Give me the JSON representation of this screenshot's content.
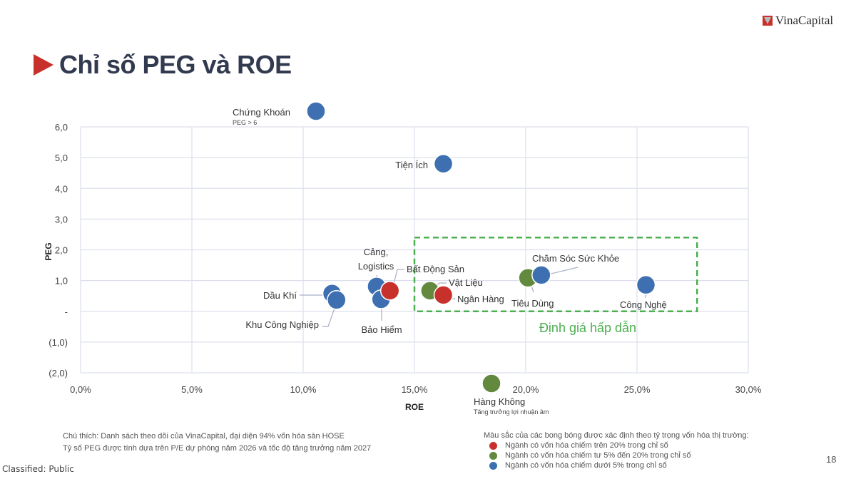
{
  "header": {
    "brand": "VinaCapital",
    "title": "Chỉ số PEG và ROE"
  },
  "colors": {
    "red": "#c8312b",
    "green": "#63893f",
    "blue": "#3e70b1",
    "zone": "#4caf50",
    "grid": "#dde0ec"
  },
  "chart_data": {
    "type": "scatter",
    "xlabel": "ROE",
    "ylabel": "PEG",
    "xlim": [
      0,
      30
    ],
    "ylim": [
      -2,
      6
    ],
    "x_ticks": [
      0,
      5,
      10,
      15,
      20,
      25,
      30
    ],
    "x_tick_labels": [
      "0,0%",
      "5,0%",
      "10,0%",
      "15,0%",
      "20,0%",
      "25,0%",
      "30,0%"
    ],
    "y_ticks": [
      6,
      5,
      4,
      3,
      2,
      1,
      0,
      -1,
      -2
    ],
    "y_tick_labels": [
      "6,0",
      "5,0",
      "4,0",
      "3,0",
      "2,0",
      "1,0",
      "-",
      "(1,0)",
      "(2,0)"
    ],
    "grid": true,
    "highlight_zone": {
      "label": "Định giá hấp dẫn",
      "x_range": [
        15,
        27.7
      ],
      "y_range": [
        0,
        2.4
      ]
    },
    "points": [
      {
        "name": "Chứng Khoán",
        "note": "PEG > 6",
        "roe": 10.6,
        "peg": 6.5,
        "group": "blue",
        "off_chart": true
      },
      {
        "name": "Tiện Ích",
        "roe": 16.3,
        "peg": 4.8,
        "group": "blue"
      },
      {
        "name": "Dầu Khí",
        "roe": 11.3,
        "peg": 0.58,
        "group": "blue"
      },
      {
        "name": "Khu Công Nghiệp",
        "roe": 11.5,
        "peg": 0.37,
        "group": "blue"
      },
      {
        "name": "Cảng, Logistics",
        "roe": 13.3,
        "peg": 0.81,
        "group": "blue"
      },
      {
        "name": "Bảo Hiểm",
        "roe": 13.5,
        "peg": 0.39,
        "group": "blue"
      },
      {
        "name": "Bất Động Sản",
        "roe": 13.9,
        "peg": 0.67,
        "group": "red"
      },
      {
        "name": "Vật Liệu",
        "roe": 15.7,
        "peg": 0.67,
        "group": "green"
      },
      {
        "name": "Ngân Hàng",
        "roe": 16.3,
        "peg": 0.53,
        "group": "red"
      },
      {
        "name": "Tiêu Dùng",
        "roe": 20.1,
        "peg": 1.09,
        "group": "green"
      },
      {
        "name": "Chăm Sóc Sức Khỏe",
        "roe": 20.7,
        "peg": 1.18,
        "group": "blue"
      },
      {
        "name": "Công Nghệ",
        "roe": 25.4,
        "peg": 0.86,
        "group": "blue"
      },
      {
        "name": "Hàng Không",
        "note": "Tăng trưởng lợi nhuận âm",
        "roe": 18.5,
        "peg": -2.4,
        "group": "green",
        "off_chart": true
      }
    ],
    "legend": {
      "title": "Màu sắc của các bong bóng được xác định theo tỷ trọng vốn hóa thị trường:",
      "entries": [
        {
          "group": "red",
          "label": "Ngành có vốn hóa chiếm trên 20% trong chỉ số"
        },
        {
          "group": "green",
          "label": "Ngành có vốn hóa chiếm tư 5% đến 20% trong chỉ số"
        },
        {
          "group": "blue",
          "label": "Ngành có vốn hóa chiếm dưới 5% trong chỉ số"
        }
      ],
      "position": "bottom-right"
    }
  },
  "footer": {
    "note_line1": "Chú thích: Danh sách theo dõi của VinaCapital, đại diện 94% vốn hóa sàn HOSE",
    "note_line2": "Tỷ số PEG được tính dựa trên P/E dự phóng năm 2026 và tốc độ tăng trưởng năm 2027",
    "classification": "Classified: Public",
    "page_number": "18"
  }
}
